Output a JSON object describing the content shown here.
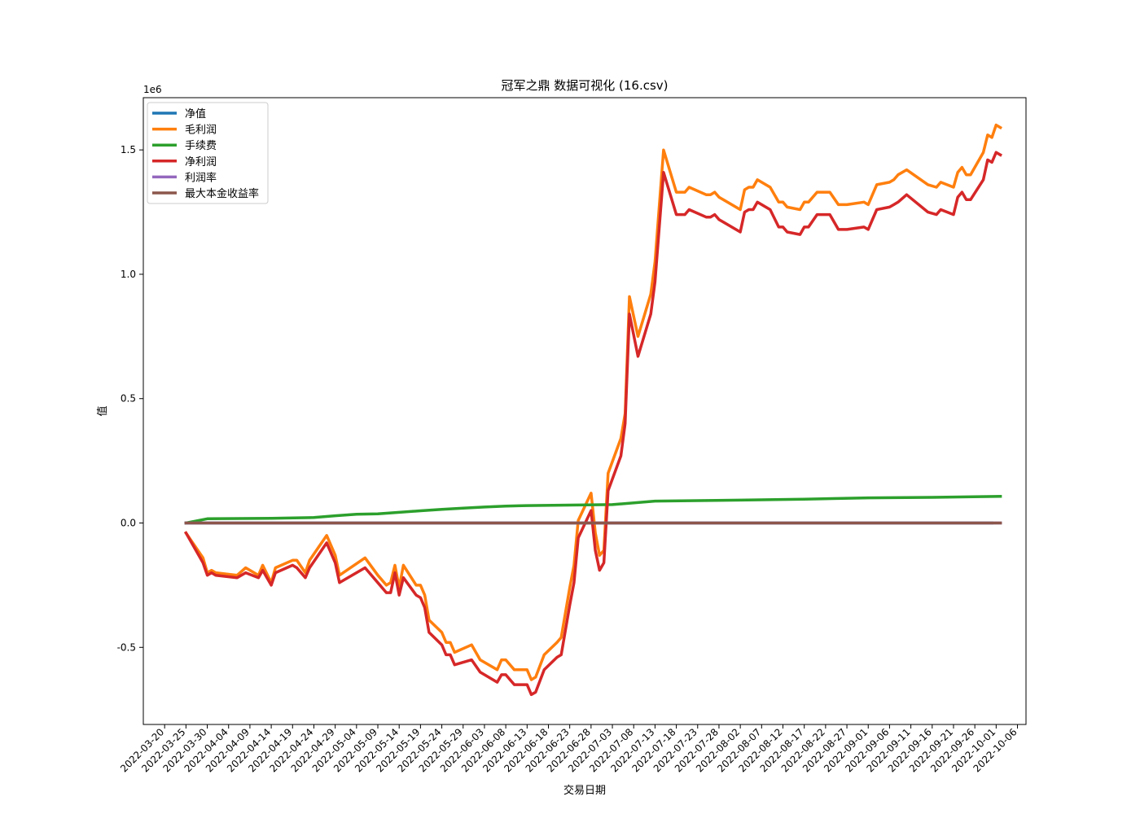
{
  "chart_data": {
    "type": "line",
    "title": "冠军之鼎 数据可视化 (16.csv)",
    "xlabel": "交易日期",
    "ylabel": "值",
    "y_offset_label": "1e6",
    "xlim": [
      "2022-03-15",
      "2022-10-08"
    ],
    "ylim": [
      -0.81,
      1.71
    ],
    "y_scale_note": "values in millions (1e6)",
    "x_tick_labels": [
      "2022-03-20",
      "2022-03-25",
      "2022-03-30",
      "2022-04-04",
      "2022-04-09",
      "2022-04-14",
      "2022-04-19",
      "2022-04-24",
      "2022-04-29",
      "2022-05-04",
      "2022-05-09",
      "2022-05-14",
      "2022-05-19",
      "2022-05-24",
      "2022-05-29",
      "2022-06-03",
      "2022-06-08",
      "2022-06-13",
      "2022-06-18",
      "2022-06-23",
      "2022-06-28",
      "2022-07-03",
      "2022-07-08",
      "2022-07-13",
      "2022-07-18",
      "2022-07-23",
      "2022-07-28",
      "2022-08-02",
      "2022-08-07",
      "2022-08-12",
      "2022-08-17",
      "2022-08-22",
      "2022-08-27",
      "2022-09-01",
      "2022-09-06",
      "2022-09-11",
      "2022-09-16",
      "2022-09-21",
      "2022-09-26",
      "2022-10-01",
      "2022-10-06"
    ],
    "y_ticks": [
      -0.5,
      0.0,
      0.5,
      1.0,
      1.5
    ],
    "y_tick_labels": [
      "-0.5",
      "0.0",
      "0.5",
      "1.0",
      "1.5"
    ],
    "legend_position": "upper-left",
    "grid": false,
    "series": [
      {
        "name": "净值",
        "color": "#1f77b4",
        "points": [
          [
            "2022-03-25",
            0.0
          ],
          [
            "2022-09-30",
            0.0
          ]
        ]
      },
      {
        "name": "毛利润",
        "color": "#ff7f0e",
        "points": [
          [
            "2022-03-25",
            -0.04
          ],
          [
            "2022-03-29",
            -0.14
          ],
          [
            "2022-03-30",
            -0.2
          ],
          [
            "2022-03-31",
            -0.19
          ],
          [
            "2022-04-01",
            -0.2
          ],
          [
            "2022-04-06",
            -0.21
          ],
          [
            "2022-04-08",
            -0.18
          ],
          [
            "2022-04-11",
            -0.21
          ],
          [
            "2022-04-12",
            -0.17
          ],
          [
            "2022-04-14",
            -0.24
          ],
          [
            "2022-04-15",
            -0.18
          ],
          [
            "2022-04-19",
            -0.15
          ],
          [
            "2022-04-20",
            -0.15
          ],
          [
            "2022-04-22",
            -0.2
          ],
          [
            "2022-04-23",
            -0.15
          ],
          [
            "2022-04-27",
            -0.05
          ],
          [
            "2022-04-29",
            -0.13
          ],
          [
            "2022-04-30",
            -0.21
          ],
          [
            "2022-05-06",
            -0.14
          ],
          [
            "2022-05-09",
            -0.21
          ],
          [
            "2022-05-11",
            -0.25
          ],
          [
            "2022-05-12",
            -0.24
          ],
          [
            "2022-05-13",
            -0.17
          ],
          [
            "2022-05-14",
            -0.26
          ],
          [
            "2022-05-15",
            -0.17
          ],
          [
            "2022-05-18",
            -0.25
          ],
          [
            "2022-05-19",
            -0.25
          ],
          [
            "2022-05-20",
            -0.29
          ],
          [
            "2022-05-21",
            -0.39
          ],
          [
            "2022-05-24",
            -0.44
          ],
          [
            "2022-05-25",
            -0.48
          ],
          [
            "2022-05-26",
            -0.48
          ],
          [
            "2022-05-27",
            -0.52
          ],
          [
            "2022-05-31",
            -0.49
          ],
          [
            "2022-06-02",
            -0.55
          ],
          [
            "2022-06-06",
            -0.59
          ],
          [
            "2022-06-07",
            -0.55
          ],
          [
            "2022-06-08",
            -0.55
          ],
          [
            "2022-06-10",
            -0.59
          ],
          [
            "2022-06-13",
            -0.59
          ],
          [
            "2022-06-14",
            -0.63
          ],
          [
            "2022-06-15",
            -0.62
          ],
          [
            "2022-06-17",
            -0.53
          ],
          [
            "2022-06-20",
            -0.48
          ],
          [
            "2022-06-21",
            -0.46
          ],
          [
            "2022-06-23",
            -0.26
          ],
          [
            "2022-06-24",
            -0.17
          ],
          [
            "2022-06-25",
            0.01
          ],
          [
            "2022-06-28",
            0.12
          ],
          [
            "2022-06-29",
            -0.04
          ],
          [
            "2022-06-30",
            -0.13
          ],
          [
            "2022-07-01",
            -0.11
          ],
          [
            "2022-07-02",
            0.2
          ],
          [
            "2022-07-05",
            0.34
          ],
          [
            "2022-07-06",
            0.44
          ],
          [
            "2022-07-07",
            0.91
          ],
          [
            "2022-07-09",
            0.75
          ],
          [
            "2022-07-12",
            0.92
          ],
          [
            "2022-07-13",
            1.05
          ],
          [
            "2022-07-15",
            1.5
          ],
          [
            "2022-07-18",
            1.33
          ],
          [
            "2022-07-19",
            1.33
          ],
          [
            "2022-07-20",
            1.33
          ],
          [
            "2022-07-21",
            1.35
          ],
          [
            "2022-07-25",
            1.32
          ],
          [
            "2022-07-26",
            1.32
          ],
          [
            "2022-07-27",
            1.33
          ],
          [
            "2022-07-28",
            1.31
          ],
          [
            "2022-07-29",
            1.3
          ],
          [
            "2022-08-02",
            1.26
          ],
          [
            "2022-08-03",
            1.34
          ],
          [
            "2022-08-04",
            1.35
          ],
          [
            "2022-08-05",
            1.35
          ],
          [
            "2022-08-06",
            1.38
          ],
          [
            "2022-08-09",
            1.35
          ],
          [
            "2022-08-11",
            1.29
          ],
          [
            "2022-08-12",
            1.29
          ],
          [
            "2022-08-13",
            1.27
          ],
          [
            "2022-08-16",
            1.26
          ],
          [
            "2022-08-17",
            1.29
          ],
          [
            "2022-08-18",
            1.29
          ],
          [
            "2022-08-20",
            1.33
          ],
          [
            "2022-08-23",
            1.33
          ],
          [
            "2022-08-25",
            1.28
          ],
          [
            "2022-08-27",
            1.28
          ],
          [
            "2022-08-31",
            1.29
          ],
          [
            "2022-09-01",
            1.28
          ],
          [
            "2022-09-03",
            1.36
          ],
          [
            "2022-09-06",
            1.37
          ],
          [
            "2022-09-07",
            1.38
          ],
          [
            "2022-09-08",
            1.4
          ],
          [
            "2022-09-10",
            1.42
          ],
          [
            "2022-09-15",
            1.36
          ],
          [
            "2022-09-17",
            1.35
          ],
          [
            "2022-09-18",
            1.37
          ],
          [
            "2022-09-21",
            1.35
          ],
          [
            "2022-09-22",
            1.41
          ],
          [
            "2022-09-23",
            1.43
          ],
          [
            "2022-09-24",
            1.4
          ],
          [
            "2022-09-25",
            1.4
          ],
          [
            "2022-09-28",
            1.49
          ],
          [
            "2022-09-29",
            1.56
          ],
          [
            "2022-09-30",
            1.55
          ],
          [
            "2022-10-01",
            1.6
          ],
          [
            "2022-10-02",
            1.59
          ]
        ]
      },
      {
        "name": "手续费",
        "color": "#2ca02c",
        "points": [
          [
            "2022-03-25",
            0.0
          ],
          [
            "2022-03-30",
            0.017
          ],
          [
            "2022-04-14",
            0.019
          ],
          [
            "2022-04-24",
            0.022
          ],
          [
            "2022-04-29",
            0.029
          ],
          [
            "2022-05-04",
            0.035
          ],
          [
            "2022-05-09",
            0.037
          ],
          [
            "2022-05-14",
            0.043
          ],
          [
            "2022-05-19",
            0.049
          ],
          [
            "2022-05-24",
            0.055
          ],
          [
            "2022-05-29",
            0.06
          ],
          [
            "2022-06-03",
            0.064
          ],
          [
            "2022-06-08",
            0.068
          ],
          [
            "2022-06-13",
            0.07
          ],
          [
            "2022-06-23",
            0.072
          ],
          [
            "2022-07-03",
            0.074
          ],
          [
            "2022-07-13",
            0.088
          ],
          [
            "2022-08-02",
            0.092
          ],
          [
            "2022-08-17",
            0.096
          ],
          [
            "2022-09-01",
            0.101
          ],
          [
            "2022-09-16",
            0.103
          ],
          [
            "2022-10-02",
            0.107
          ]
        ]
      },
      {
        "name": "净利润",
        "color": "#d62728",
        "points": [
          [
            "2022-03-25",
            -0.04
          ],
          [
            "2022-03-29",
            -0.16
          ],
          [
            "2022-03-30",
            -0.21
          ],
          [
            "2022-03-31",
            -0.2
          ],
          [
            "2022-04-01",
            -0.21
          ],
          [
            "2022-04-06",
            -0.22
          ],
          [
            "2022-04-08",
            -0.2
          ],
          [
            "2022-04-11",
            -0.22
          ],
          [
            "2022-04-12",
            -0.19
          ],
          [
            "2022-04-14",
            -0.25
          ],
          [
            "2022-04-15",
            -0.2
          ],
          [
            "2022-04-19",
            -0.17
          ],
          [
            "2022-04-20",
            -0.18
          ],
          [
            "2022-04-22",
            -0.22
          ],
          [
            "2022-04-23",
            -0.18
          ],
          [
            "2022-04-27",
            -0.08
          ],
          [
            "2022-04-29",
            -0.16
          ],
          [
            "2022-04-30",
            -0.24
          ],
          [
            "2022-05-06",
            -0.18
          ],
          [
            "2022-05-09",
            -0.24
          ],
          [
            "2022-05-11",
            -0.28
          ],
          [
            "2022-05-12",
            -0.28
          ],
          [
            "2022-05-13",
            -0.2
          ],
          [
            "2022-05-14",
            -0.29
          ],
          [
            "2022-05-15",
            -0.22
          ],
          [
            "2022-05-18",
            -0.29
          ],
          [
            "2022-05-19",
            -0.3
          ],
          [
            "2022-05-20",
            -0.34
          ],
          [
            "2022-05-21",
            -0.44
          ],
          [
            "2022-05-24",
            -0.49
          ],
          [
            "2022-05-25",
            -0.53
          ],
          [
            "2022-05-26",
            -0.53
          ],
          [
            "2022-05-27",
            -0.57
          ],
          [
            "2022-05-31",
            -0.55
          ],
          [
            "2022-06-02",
            -0.6
          ],
          [
            "2022-06-06",
            -0.64
          ],
          [
            "2022-06-07",
            -0.61
          ],
          [
            "2022-06-08",
            -0.61
          ],
          [
            "2022-06-10",
            -0.65
          ],
          [
            "2022-06-13",
            -0.65
          ],
          [
            "2022-06-14",
            -0.69
          ],
          [
            "2022-06-15",
            -0.68
          ],
          [
            "2022-06-17",
            -0.59
          ],
          [
            "2022-06-20",
            -0.54
          ],
          [
            "2022-06-21",
            -0.53
          ],
          [
            "2022-06-23",
            -0.33
          ],
          [
            "2022-06-24",
            -0.24
          ],
          [
            "2022-06-25",
            -0.06
          ],
          [
            "2022-06-28",
            0.05
          ],
          [
            "2022-06-29",
            -0.11
          ],
          [
            "2022-06-30",
            -0.19
          ],
          [
            "2022-07-01",
            -0.16
          ],
          [
            "2022-07-02",
            0.13
          ],
          [
            "2022-07-05",
            0.27
          ],
          [
            "2022-07-06",
            0.4
          ],
          [
            "2022-07-07",
            0.84
          ],
          [
            "2022-07-09",
            0.67
          ],
          [
            "2022-07-12",
            0.84
          ],
          [
            "2022-07-13",
            0.97
          ],
          [
            "2022-07-15",
            1.41
          ],
          [
            "2022-07-18",
            1.24
          ],
          [
            "2022-07-19",
            1.24
          ],
          [
            "2022-07-20",
            1.24
          ],
          [
            "2022-07-21",
            1.26
          ],
          [
            "2022-07-25",
            1.23
          ],
          [
            "2022-07-26",
            1.23
          ],
          [
            "2022-07-27",
            1.24
          ],
          [
            "2022-07-28",
            1.22
          ],
          [
            "2022-07-29",
            1.21
          ],
          [
            "2022-08-02",
            1.17
          ],
          [
            "2022-08-03",
            1.25
          ],
          [
            "2022-08-04",
            1.26
          ],
          [
            "2022-08-05",
            1.26
          ],
          [
            "2022-08-06",
            1.29
          ],
          [
            "2022-08-09",
            1.26
          ],
          [
            "2022-08-11",
            1.19
          ],
          [
            "2022-08-12",
            1.19
          ],
          [
            "2022-08-13",
            1.17
          ],
          [
            "2022-08-16",
            1.16
          ],
          [
            "2022-08-17",
            1.19
          ],
          [
            "2022-08-18",
            1.19
          ],
          [
            "2022-08-20",
            1.24
          ],
          [
            "2022-08-23",
            1.24
          ],
          [
            "2022-08-25",
            1.18
          ],
          [
            "2022-08-27",
            1.18
          ],
          [
            "2022-08-31",
            1.19
          ],
          [
            "2022-09-01",
            1.18
          ],
          [
            "2022-09-03",
            1.26
          ],
          [
            "2022-09-06",
            1.27
          ],
          [
            "2022-09-07",
            1.28
          ],
          [
            "2022-09-08",
            1.29
          ],
          [
            "2022-09-10",
            1.32
          ],
          [
            "2022-09-15",
            1.25
          ],
          [
            "2022-09-17",
            1.24
          ],
          [
            "2022-09-18",
            1.26
          ],
          [
            "2022-09-21",
            1.24
          ],
          [
            "2022-09-22",
            1.31
          ],
          [
            "2022-09-23",
            1.33
          ],
          [
            "2022-09-24",
            1.3
          ],
          [
            "2022-09-25",
            1.3
          ],
          [
            "2022-09-28",
            1.38
          ],
          [
            "2022-09-29",
            1.46
          ],
          [
            "2022-09-30",
            1.45
          ],
          [
            "2022-10-01",
            1.49
          ],
          [
            "2022-10-02",
            1.48
          ]
        ]
      },
      {
        "name": "利润率",
        "color": "#9467bd",
        "points": [
          [
            "2022-03-25",
            0.0
          ],
          [
            "2022-10-02",
            0.0
          ]
        ]
      },
      {
        "name": "最大本金收益率",
        "color": "#8c564b",
        "points": [
          [
            "2022-03-25",
            0.0
          ],
          [
            "2022-10-02",
            0.0
          ]
        ]
      }
    ]
  }
}
